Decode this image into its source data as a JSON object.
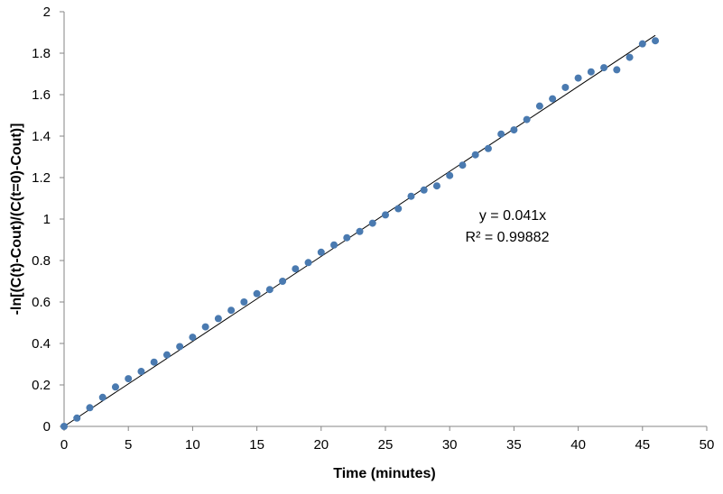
{
  "chart_data": {
    "type": "scatter",
    "title": "",
    "xlabel": "Time (minutes)",
    "ylabel": "-ln[(C(t)-Cout)/(C(t=0)-Cout)]",
    "xlim": [
      0,
      50
    ],
    "ylim": [
      0,
      2
    ],
    "x_ticks": [
      0,
      5,
      10,
      15,
      20,
      25,
      30,
      35,
      40,
      45,
      50
    ],
    "y_ticks": [
      0,
      0.2,
      0.4,
      0.6,
      0.8,
      1,
      1.2,
      1.4,
      1.6,
      1.8,
      2
    ],
    "x_tick_labels": [
      "0",
      "5",
      "10",
      "15",
      "20",
      "25",
      "30",
      "35",
      "40",
      "45",
      "50"
    ],
    "y_tick_labels": [
      "0",
      "0.2",
      "0.4",
      "0.6",
      "0.8",
      "1",
      "1.2",
      "1.4",
      "1.6",
      "1.8",
      "2"
    ],
    "grid": false,
    "legend": "none",
    "marker_color": "#4a7ab0",
    "line_color": "#000000",
    "series": [
      {
        "x": [
          0,
          1,
          2,
          3,
          4,
          5,
          6,
          7,
          8,
          9,
          10,
          11,
          12,
          13,
          14,
          15,
          16,
          17,
          18,
          19,
          20,
          21,
          22,
          23,
          24,
          25,
          26,
          27,
          28,
          29,
          30,
          31,
          32,
          33,
          34,
          35,
          36,
          37,
          38,
          39,
          40,
          41,
          42,
          43,
          44,
          45,
          46
        ],
        "y": [
          0,
          0.04,
          0.09,
          0.14,
          0.19,
          0.23,
          0.265,
          0.31,
          0.345,
          0.385,
          0.43,
          0.48,
          0.52,
          0.56,
          0.6,
          0.64,
          0.66,
          0.7,
          0.76,
          0.79,
          0.84,
          0.875,
          0.91,
          0.94,
          0.98,
          1.02,
          1.05,
          1.11,
          1.14,
          1.16,
          1.21,
          1.26,
          1.31,
          1.34,
          1.41,
          1.43,
          1.48,
          1.545,
          1.58,
          1.635,
          1.68,
          1.71,
          1.73,
          1.72,
          1.78,
          1.845,
          1.86
        ]
      }
    ],
    "trendline": {
      "slope": 0.041,
      "intercept": 0,
      "x_range": [
        0,
        46
      ]
    },
    "annotations": {
      "equation": "y = 0.041x",
      "r_squared": "R² = 0.99882"
    }
  }
}
